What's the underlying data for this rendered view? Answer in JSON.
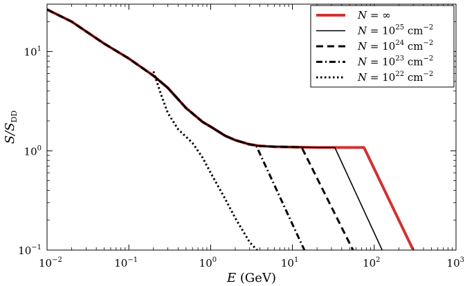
{
  "chart_data": {
    "type": "line",
    "xlabel": "E (GeV)",
    "ylabel": "S/S_DD",
    "xscale": "log",
    "yscale": "log",
    "xlim": [
      0.01,
      1000
    ],
    "ylim": [
      0.1,
      30
    ],
    "grid": false,
    "legend_position": "top-right",
    "x_ticks": [
      {
        "value": 0.01,
        "base": "10",
        "exp": "−2"
      },
      {
        "value": 0.1,
        "base": "10",
        "exp": "−1"
      },
      {
        "value": 1,
        "base": "10",
        "exp": "0"
      },
      {
        "value": 10,
        "base": "10",
        "exp": "1"
      },
      {
        "value": 100,
        "base": "10",
        "exp": "2"
      },
      {
        "value": 1000,
        "base": "10",
        "exp": "3"
      }
    ],
    "y_ticks": [
      {
        "value": 0.1,
        "base": "10",
        "exp": "−1"
      },
      {
        "value": 1,
        "base": "10",
        "exp": "0"
      },
      {
        "value": 10,
        "base": "10",
        "exp": "1"
      }
    ],
    "series": [
      {
        "name": "N = ∞",
        "color": "#d03232",
        "style": "solid-thick",
        "x": [
          0.01,
          0.02,
          0.05,
          0.1,
          0.2,
          0.3,
          0.5,
          0.8,
          1.0,
          1.5,
          2.0,
          3.0,
          4.0,
          6.0,
          10.0,
          20.0,
          40.0,
          75.0,
          300.0
        ],
        "y": [
          26.5,
          20.0,
          12.0,
          8.5,
          5.7,
          4.3,
          2.7,
          1.95,
          1.75,
          1.42,
          1.28,
          1.16,
          1.12,
          1.1,
          1.09,
          1.08,
          1.08,
          1.08,
          0.1
        ]
      },
      {
        "name": "N = 10^25 cm^-2",
        "color": "#000000",
        "style": "solid",
        "x": [
          0.01,
          0.02,
          0.05,
          0.1,
          0.2,
          0.3,
          0.5,
          0.8,
          1.0,
          1.5,
          2.0,
          3.0,
          4.0,
          6.0,
          10.0,
          20.0,
          33.0,
          125.0
        ],
        "y": [
          26.5,
          20.0,
          12.0,
          8.5,
          5.7,
          4.3,
          2.7,
          1.95,
          1.75,
          1.42,
          1.28,
          1.16,
          1.12,
          1.1,
          1.09,
          1.08,
          1.08,
          0.1
        ]
      },
      {
        "name": "N = 10^24 cm^-2",
        "color": "#000000",
        "style": "dashed",
        "x": [
          0.01,
          0.02,
          0.05,
          0.1,
          0.2,
          0.3,
          0.5,
          0.8,
          1.0,
          1.5,
          2.0,
          3.0,
          4.0,
          6.0,
          10.0,
          13.0,
          55.0
        ],
        "y": [
          26.5,
          20.0,
          12.0,
          8.5,
          5.7,
          4.3,
          2.7,
          1.95,
          1.75,
          1.42,
          1.28,
          1.16,
          1.12,
          1.1,
          1.09,
          1.08,
          0.1
        ]
      },
      {
        "name": "N = 10^23 cm^-2",
        "color": "#000000",
        "style": "dashdot",
        "x": [
          0.2,
          0.3,
          0.5,
          0.8,
          1.0,
          1.5,
          2.0,
          3.0,
          3.6,
          14.0
        ],
        "y": [
          5.7,
          4.3,
          2.7,
          1.95,
          1.75,
          1.42,
          1.28,
          1.16,
          1.13,
          0.1
        ]
      },
      {
        "name": "N = 10^22 cm^-2",
        "color": "#000000",
        "style": "dotted",
        "x": [
          0.2,
          0.25,
          0.3,
          0.4,
          0.6,
          0.8,
          1.0,
          1.5,
          2.0,
          3.0,
          3.7
        ],
        "y": [
          6.3,
          3.6,
          2.4,
          1.65,
          1.2,
          0.85,
          0.6,
          0.33,
          0.21,
          0.12,
          0.1
        ]
      }
    ],
    "legend": [
      {
        "lhs": "N",
        "eq": "=",
        "rhs": "∞",
        "unit": "",
        "exp": ""
      },
      {
        "lhs": "N",
        "eq": "=",
        "rhs": "10",
        "exp": "25",
        "unit": "cm",
        "unit_exp": "−2"
      },
      {
        "lhs": "N",
        "eq": "=",
        "rhs": "10",
        "exp": "24",
        "unit": "cm",
        "unit_exp": "−2"
      },
      {
        "lhs": "N",
        "eq": "=",
        "rhs": "10",
        "exp": "23",
        "unit": "cm",
        "unit_exp": "−2"
      },
      {
        "lhs": "N",
        "eq": "=",
        "rhs": "10",
        "exp": "22",
        "unit": "cm",
        "unit_exp": "−2"
      }
    ]
  }
}
